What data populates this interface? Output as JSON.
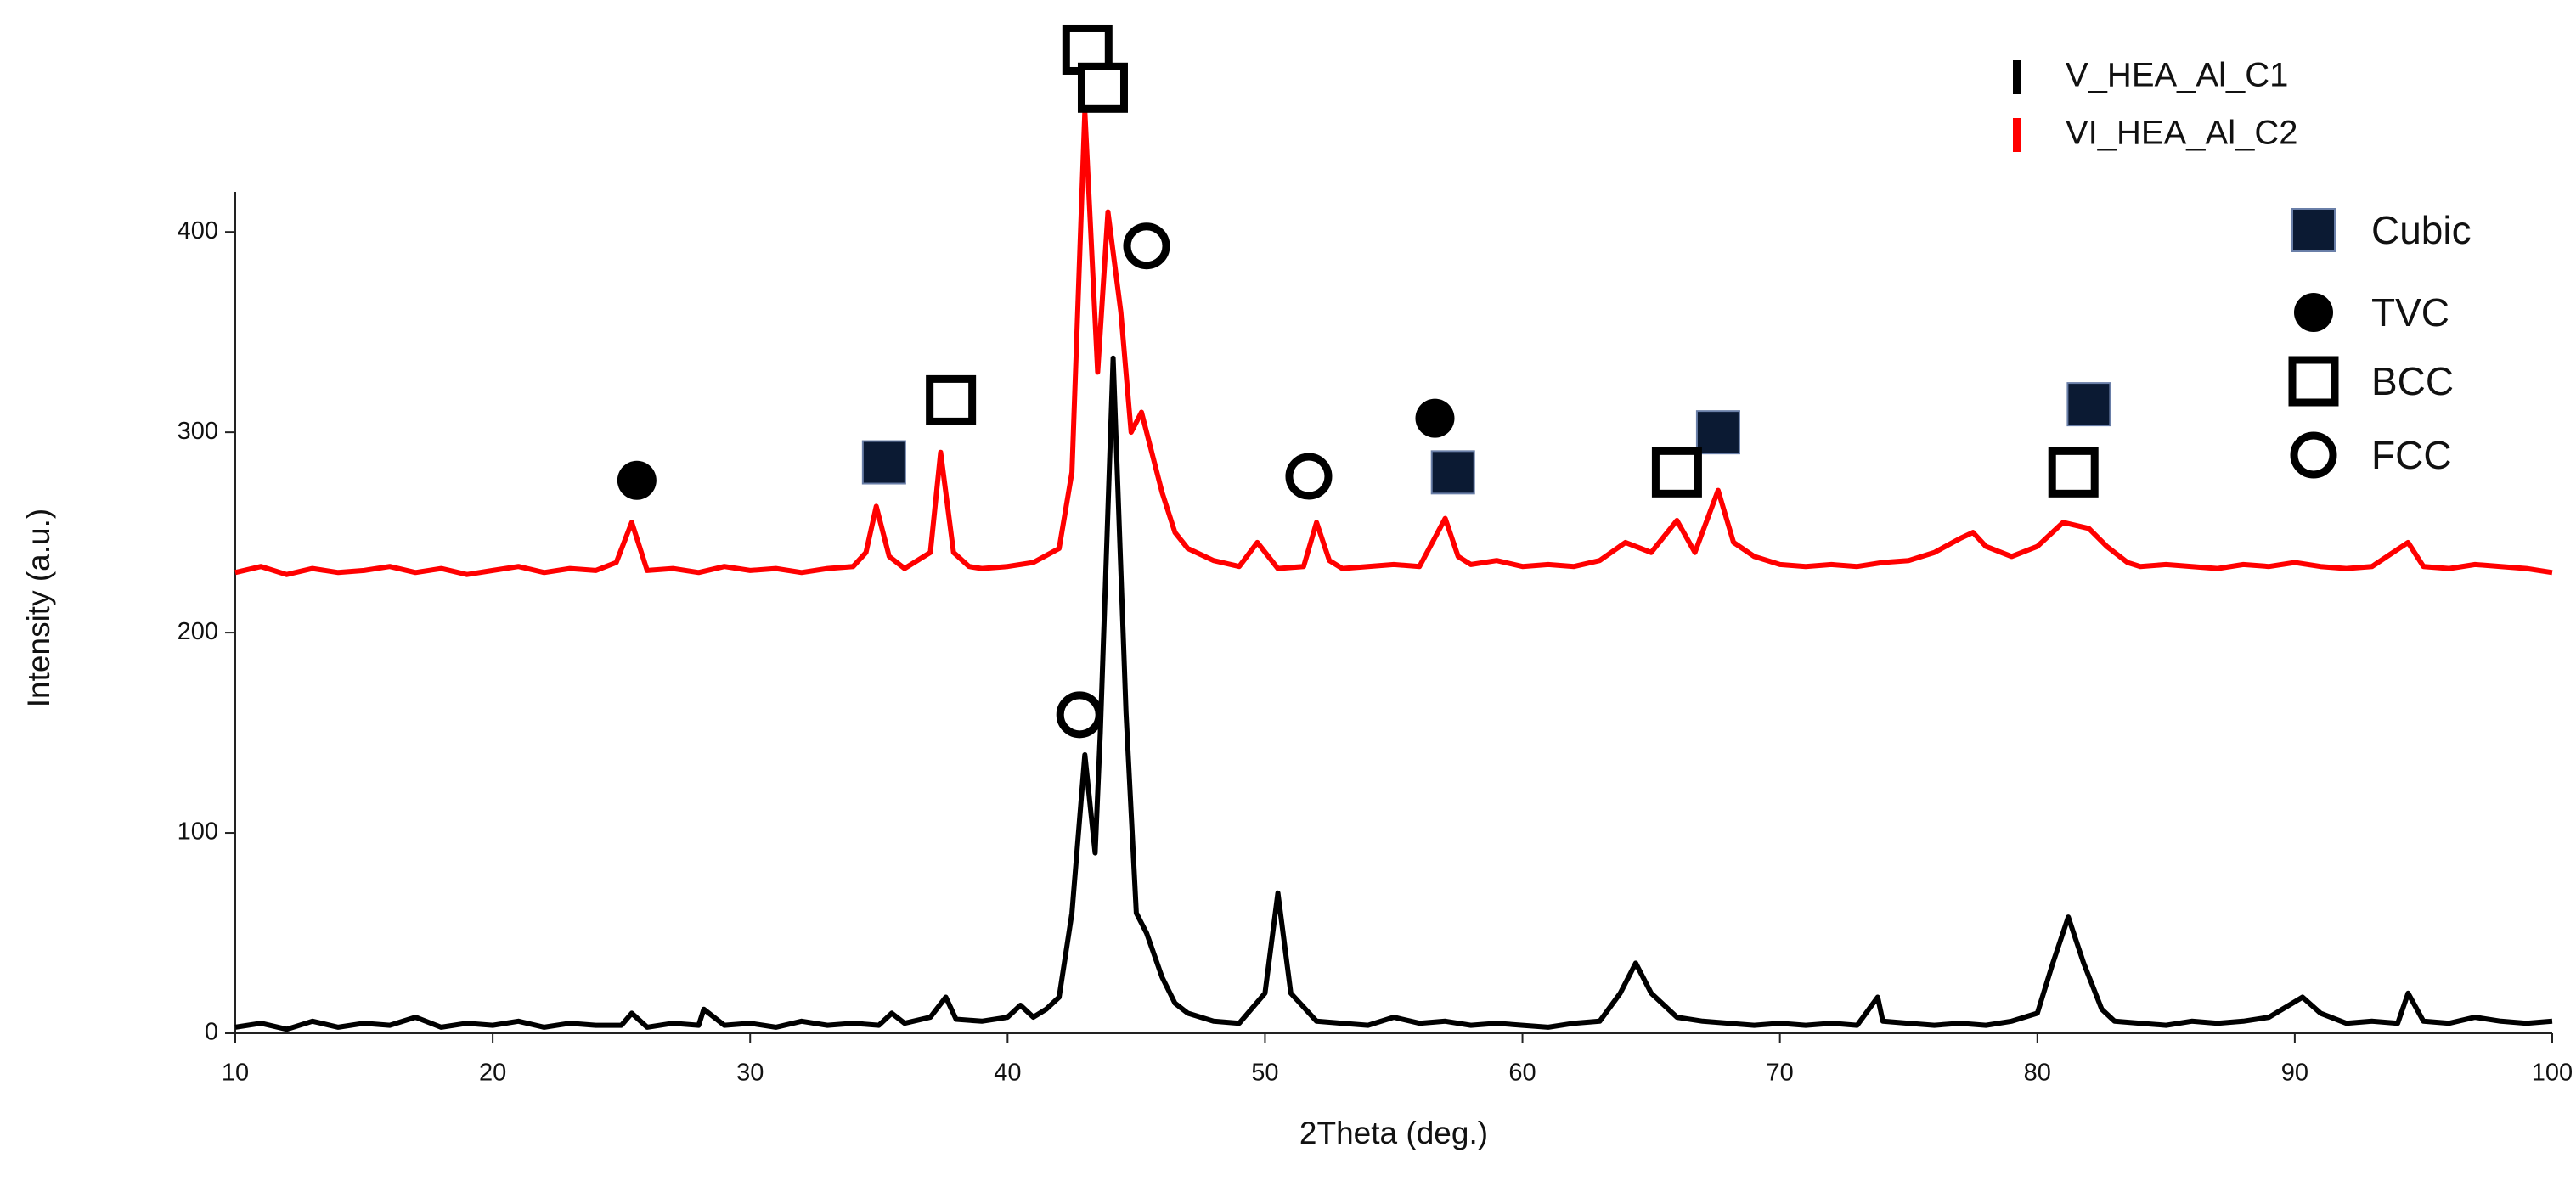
{
  "chart_data": {
    "type": "line",
    "xlabel": "2Theta (deg.)",
    "ylabel": "Intensity (a.u.)",
    "xlim": [
      10,
      100
    ],
    "xticks": [
      10,
      20,
      30,
      40,
      50,
      60,
      70,
      80,
      90,
      100
    ],
    "ylim": [
      0,
      420
    ],
    "yticks": [
      0,
      100,
      200,
      300,
      400
    ],
    "grid": false,
    "legend": "upper right",
    "series": [
      {
        "name": "V_HEA_Al_C1",
        "color": "#000000",
        "x": [
          10,
          11,
          12,
          13,
          14,
          15,
          16,
          17,
          18,
          19,
          20,
          21,
          22,
          23,
          24,
          25,
          25.4,
          26,
          27,
          28,
          28.2,
          29,
          30,
          31,
          32,
          33,
          34,
          35,
          35.5,
          36,
          37,
          37.6,
          38,
          39,
          40,
          40.5,
          41,
          41.5,
          42,
          42.5,
          43,
          43.4,
          43.6,
          44.1,
          44.6,
          45,
          45.4,
          46,
          46.5,
          47,
          48,
          49,
          50,
          50.5,
          51,
          52,
          53,
          54,
          55,
          56,
          57,
          58,
          59,
          60,
          61,
          62,
          63,
          63.8,
          64.4,
          65,
          66,
          67,
          68,
          69,
          70,
          71,
          72,
          73,
          73.8,
          74,
          75,
          76,
          77,
          78,
          79,
          80,
          80.6,
          81.2,
          81.8,
          82.5,
          83,
          84,
          85,
          86,
          87,
          88,
          89,
          90.3,
          91,
          92,
          93,
          94,
          94.4,
          95,
          96,
          97,
          98,
          99,
          100
        ],
        "values": [
          3,
          5,
          2,
          6,
          3,
          5,
          4,
          8,
          3,
          5,
          4,
          6,
          3,
          5,
          4,
          4,
          10,
          3,
          5,
          4,
          12,
          4,
          5,
          3,
          6,
          4,
          5,
          4,
          10,
          5,
          8,
          18,
          7,
          6,
          8,
          14,
          8,
          12,
          18,
          60,
          139,
          90,
          150,
          337,
          160,
          60,
          50,
          28,
          15,
          10,
          6,
          5,
          20,
          70,
          20,
          6,
          5,
          4,
          8,
          5,
          6,
          4,
          5,
          4,
          3,
          5,
          6,
          20,
          35,
          20,
          8,
          6,
          5,
          4,
          5,
          4,
          5,
          4,
          18,
          6,
          5,
          4,
          5,
          4,
          6,
          10,
          35,
          58,
          35,
          12,
          6,
          5,
          4,
          6,
          5,
          6,
          8,
          18,
          10,
          5,
          6,
          5,
          20,
          6,
          5,
          8,
          6,
          5,
          6
        ]
      },
      {
        "name": "VI_HEA_Al_C2",
        "color": "#ff0000",
        "x": [
          10,
          11,
          12,
          13,
          14,
          15,
          16,
          17,
          18,
          19,
          20,
          21,
          22,
          23,
          24,
          24.8,
          25.4,
          26,
          27,
          28,
          29,
          30,
          31,
          32,
          33,
          34,
          34.5,
          34.9,
          35.4,
          36,
          37,
          37.4,
          37.9,
          38.5,
          39,
          40,
          41,
          42,
          42.5,
          43,
          43.5,
          43.9,
          44.4,
          44.8,
          45.2,
          45.7,
          46,
          46.5,
          47,
          48,
          49,
          49.7,
          50.5,
          51.5,
          52,
          52.5,
          53,
          54,
          55,
          56,
          57,
          57.5,
          58,
          59,
          60,
          61,
          62,
          63,
          64,
          65,
          66,
          66.7,
          67.6,
          68.2,
          69,
          70,
          71,
          72,
          73,
          74,
          75,
          76,
          77,
          77.5,
          78,
          79,
          80,
          81,
          82,
          82.7,
          83.5,
          84,
          85,
          86,
          87,
          88,
          89,
          90,
          91,
          92,
          93,
          94.4,
          95,
          96,
          97,
          98,
          99,
          100
        ],
        "values": [
          230,
          233,
          229,
          232,
          230,
          231,
          233,
          230,
          232,
          229,
          231,
          233,
          230,
          232,
          231,
          235,
          255,
          231,
          232,
          230,
          233,
          231,
          232,
          230,
          232,
          233,
          240,
          263,
          238,
          232,
          240,
          290,
          240,
          233,
          232,
          233,
          235,
          242,
          280,
          460,
          330,
          410,
          360,
          300,
          310,
          285,
          270,
          250,
          242,
          236,
          233,
          245,
          232,
          233,
          255,
          236,
          232,
          233,
          234,
          233,
          257,
          238,
          234,
          236,
          233,
          234,
          233,
          236,
          245,
          240,
          256,
          240,
          271,
          245,
          238,
          234,
          233,
          234,
          233,
          235,
          236,
          240,
          247,
          250,
          243,
          238,
          243,
          255,
          252,
          243,
          235,
          233,
          234,
          233,
          232,
          234,
          233,
          235,
          233,
          232,
          233,
          245,
          233,
          232,
          234,
          233,
          232,
          230
        ]
      }
    ],
    "phases": [
      {
        "name": "Cubic",
        "marker": "filled-square",
        "x": [
          35.2,
          57.3,
          67.6,
          82.0
        ],
        "y": [
          285,
          280,
          300,
          314
        ]
      },
      {
        "name": "TVC",
        "marker": "filled-circle",
        "x": [
          25.6,
          56.6
        ],
        "y": [
          276,
          307
        ]
      },
      {
        "name": "BCC",
        "marker": "open-square",
        "x": [
          37.8,
          43.1,
          43.7,
          66.0,
          81.4
        ],
        "y": [
          316,
          491,
          472,
          280,
          280
        ]
      },
      {
        "name": "FCC",
        "marker": "open-circle",
        "x": [
          45.4,
          51.7,
          42.8
        ],
        "y": [
          393,
          278,
          159
        ]
      }
    ]
  }
}
